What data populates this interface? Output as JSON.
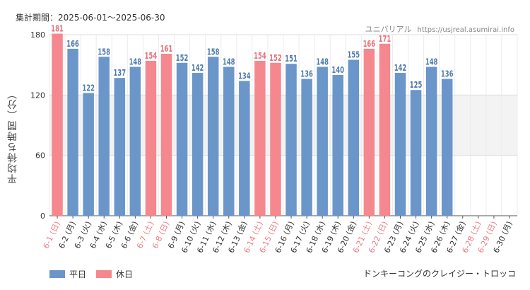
{
  "header": {
    "period": "集計期間：2025-06-01～2025-06-30",
    "site_name": "ユニバリアル",
    "site_url": "https://usjreal.asumirai.info"
  },
  "footer": {
    "attraction": "ドンキーコングのクレイジー・トロッコ"
  },
  "colors": {
    "weekday": "#6b96c9",
    "holiday": "#f5888e",
    "weekday_label": "#4d7aae",
    "holiday_label": "#e8707a",
    "tick_weekday": "#333333",
    "tick_holiday": "#f07b84"
  },
  "chart_data": {
    "type": "bar",
    "title": "",
    "ylabel": "平均待ち時間（分）",
    "xlabel": "",
    "ylim": [
      0,
      180
    ],
    "yticks": [
      0,
      60,
      120,
      180
    ],
    "shaded_band": [
      60,
      120
    ],
    "grid": true,
    "legend": {
      "position": "bottom-left",
      "entries": [
        {
          "name": "平日",
          "kind": "weekday"
        },
        {
          "name": "休日",
          "kind": "holiday"
        }
      ]
    },
    "categories": [
      "6-1 (日)",
      "6-2 (月)",
      "6-3 (火)",
      "6-4 (水)",
      "6-5 (木)",
      "6-6 (金)",
      "6-7 (土)",
      "6-8 (日)",
      "6-9 (月)",
      "6-10 (火)",
      "6-11 (水)",
      "6-12 (木)",
      "6-13 (金)",
      "6-14 (土)",
      "6-15 (日)",
      "6-16 (月)",
      "6-17 (火)",
      "6-18 (水)",
      "6-19 (木)",
      "6-20 (金)",
      "6-21 (土)",
      "6-22 (日)",
      "6-23 (月)",
      "6-24 (火)",
      "6-25 (水)",
      "6-26 (木)",
      "6-27 (金)",
      "6-28 (土)",
      "6-29 (日)",
      "6-30 (月)"
    ],
    "values": [
      181,
      166,
      122,
      158,
      137,
      148,
      154,
      161,
      152,
      142,
      158,
      148,
      134,
      154,
      152,
      151,
      136,
      148,
      140,
      155,
      166,
      171,
      142,
      125,
      148,
      136,
      null,
      null,
      null,
      null
    ],
    "holiday": [
      true,
      false,
      false,
      false,
      false,
      false,
      true,
      true,
      false,
      false,
      false,
      false,
      false,
      true,
      true,
      false,
      false,
      false,
      false,
      false,
      true,
      true,
      false,
      false,
      false,
      false,
      false,
      true,
      true,
      false
    ]
  }
}
